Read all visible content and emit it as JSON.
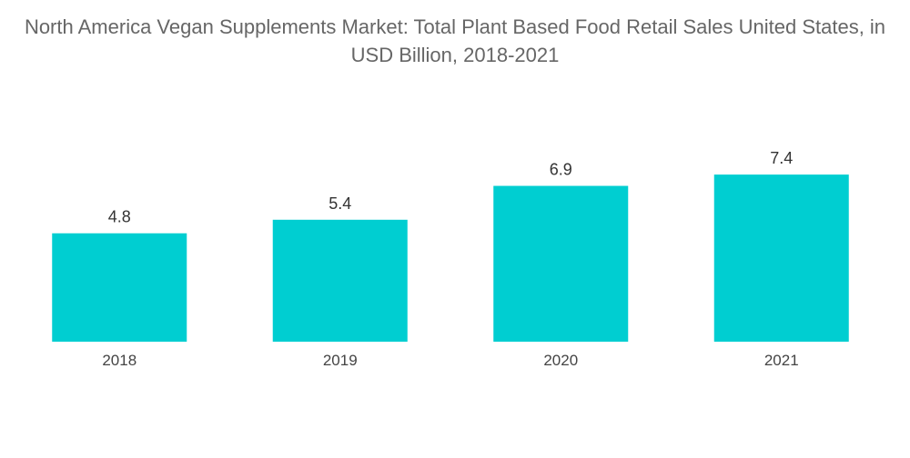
{
  "chart_data": {
    "type": "bar",
    "title": "North America Vegan Supplements Market: Total Plant Based Food Retail Sales United States, in USD Billion, 2018-2021",
    "xlabel": "",
    "ylabel": "",
    "categories": [
      "2018",
      "2019",
      "2020",
      "2021"
    ],
    "values": [
      4.8,
      5.4,
      6.9,
      7.4
    ],
    "data_labels": [
      "4.8",
      "5.4",
      "6.9",
      "7.4"
    ],
    "ylim": [
      0,
      8.25
    ],
    "grid": false,
    "legend": "none",
    "bar_color": "#00CED1"
  }
}
